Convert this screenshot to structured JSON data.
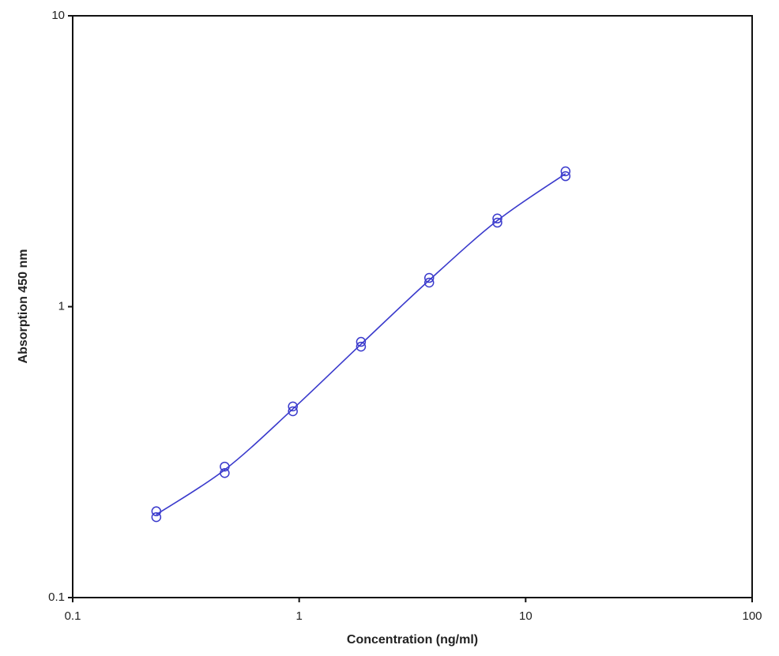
{
  "chart_data": {
    "type": "scatter",
    "x_label": "Concentration (ng/ml)",
    "y_label": "Absorption 450 nm",
    "x": [
      0.234,
      0.469,
      0.938,
      1.875,
      3.75,
      7.5,
      15
    ],
    "series": [
      {
        "color": "#3a3acc",
        "values": [
          0.198,
          0.282,
          0.454,
          0.757,
          1.256,
          2.01,
          2.92
        ]
      },
      {
        "color": "#3a3acc",
        "values": [
          0.189,
          0.268,
          0.437,
          0.729,
          1.21,
          1.945,
          2.81
        ]
      }
    ],
    "curve": {
      "color": "#3a3acc",
      "values": [
        0.193,
        0.275,
        0.445,
        0.743,
        1.233,
        1.977,
        2.865
      ]
    },
    "xlim": [
      0.1,
      100
    ],
    "ylim": [
      0.1,
      10
    ],
    "xticks": [
      0.1,
      1,
      10,
      100
    ],
    "yticks": [
      0.1,
      1,
      10
    ],
    "xscale": "log",
    "yscale": "log"
  }
}
